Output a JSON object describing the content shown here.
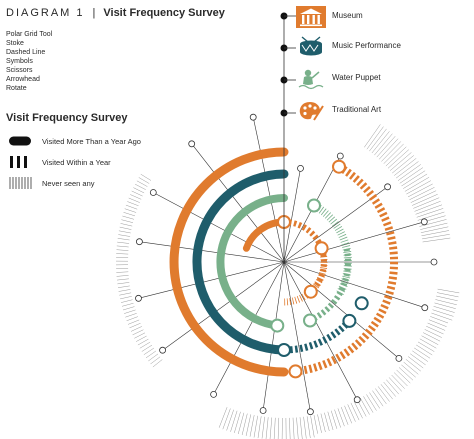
{
  "header": {
    "diagram_label": "DIAGRAM 1",
    "separator": "|",
    "title": "Visit Frequency Survey"
  },
  "tools": [
    "Polar Grid Tool",
    "Stoke",
    "Dashed Line",
    "Symbols",
    "Scissors",
    "Arrowhead",
    "Rotate"
  ],
  "legend": {
    "title": "Visit Frequency Survey",
    "items": [
      {
        "label": "Visited More Than a Year Ago",
        "style": "solid"
      },
      {
        "label": "Visited Within a Year",
        "style": "dashed-bold"
      },
      {
        "label": "Never seen any",
        "style": "dashed-thin"
      }
    ]
  },
  "categories": [
    {
      "label": "Museum",
      "icon": "museum-icon",
      "color": "#e07b2e"
    },
    {
      "label": "Music Performance",
      "icon": "drum-icon",
      "color": "#1f5d6b"
    },
    {
      "label": "Water Puppet",
      "icon": "water-puppet-icon",
      "color": "#78b08a"
    },
    {
      "label": "Traditional Art",
      "icon": "palette-icon",
      "color": "#e07b2e"
    }
  ],
  "colors": {
    "orange": "#e07b2e",
    "teal": "#1f5d6b",
    "green": "#78b08a",
    "gray": "#9a9a9a",
    "dark": "#333333"
  }
}
